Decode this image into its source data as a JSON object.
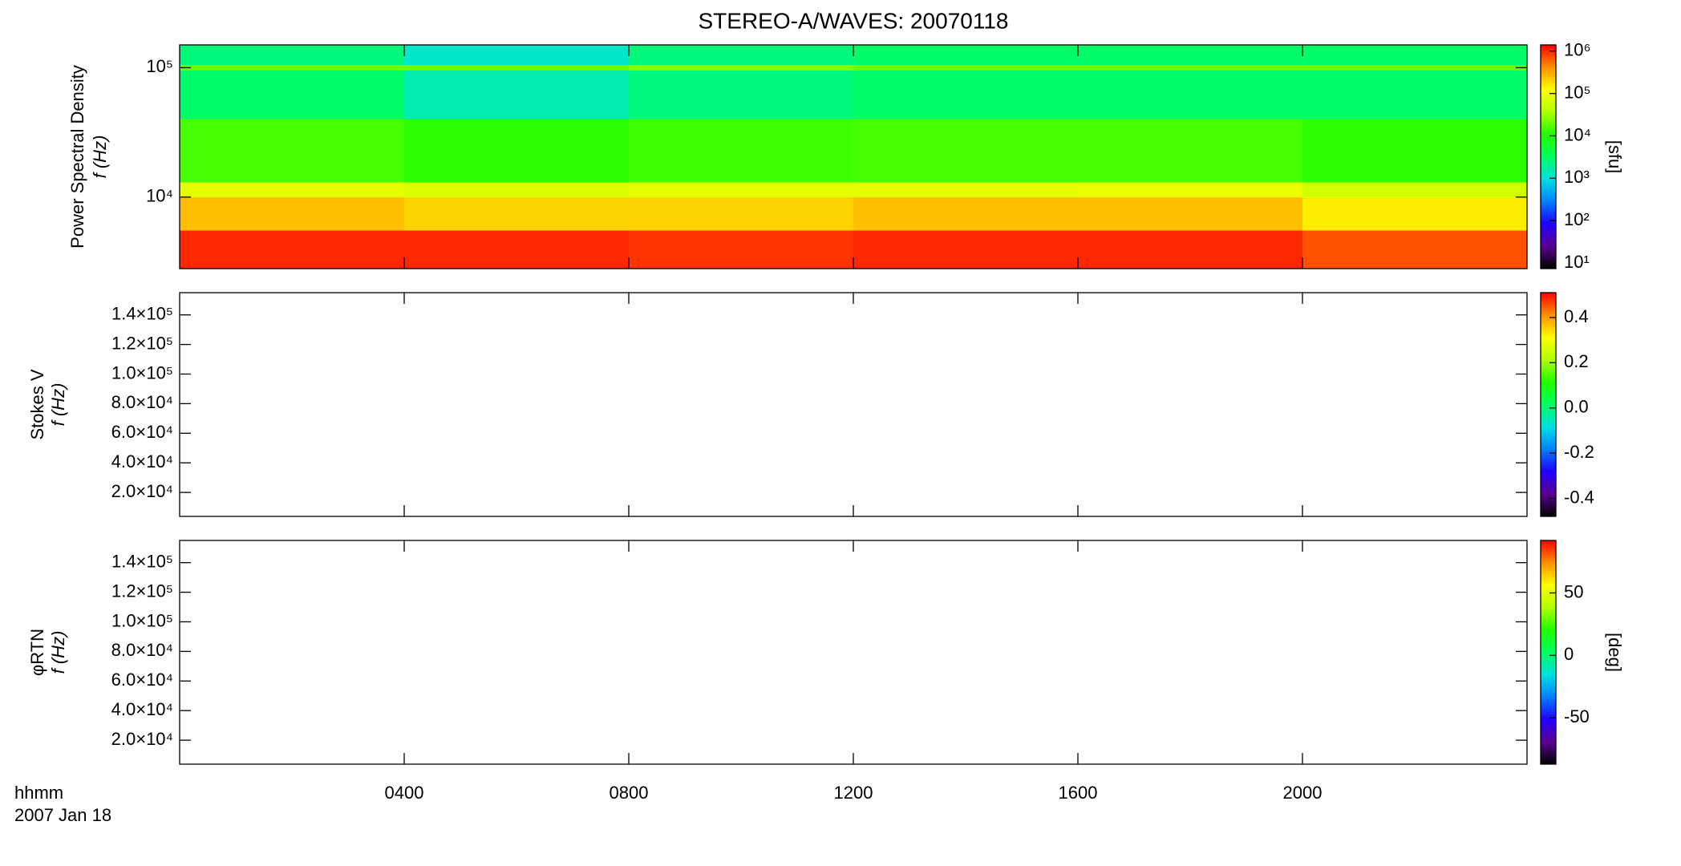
{
  "chart_data": [
    {
      "type": "heatmap",
      "title": "STEREO-A/WAVES: 20070118",
      "ylabel": "Power Spectral Density",
      "ylabel2": "f (Hz)",
      "ylog": true,
      "ylim": [
        2800,
        150000
      ],
      "yticks": [
        {
          "value": 10000,
          "label": "10⁴"
        },
        {
          "value": 100000,
          "label": "10⁵"
        }
      ],
      "xlim": [
        0,
        24
      ],
      "x_bins": [
        0,
        4,
        8,
        12,
        16,
        20,
        24
      ],
      "y_bins": [
        2800,
        5500,
        10000,
        13000,
        40000,
        95000,
        105000,
        150000
      ],
      "z": [
        [
          1000000,
          250000,
          80000,
          15000,
          3000,
          20000,
          2500
        ],
        [
          1000000,
          200000,
          70000,
          12000,
          1500,
          20000,
          1200
        ],
        [
          900000,
          200000,
          80000,
          14000,
          2500,
          25000,
          2500
        ],
        [
          1000000,
          250000,
          80000,
          15000,
          3000,
          20000,
          3000
        ],
        [
          1000000,
          250000,
          90000,
          15000,
          3000,
          20000,
          3000
        ],
        [
          700000,
          150000,
          60000,
          12000,
          3000,
          20000,
          3000
        ]
      ],
      "clog": true,
      "clim": [
        7.4,
        1400000
      ],
      "cticks": [
        {
          "value": 10,
          "label": "10¹"
        },
        {
          "value": 100,
          "label": "10²"
        },
        {
          "value": 1000,
          "label": "10³"
        },
        {
          "value": 10000,
          "label": "10⁴"
        },
        {
          "value": 100000,
          "label": "10⁵"
        },
        {
          "value": 1000000,
          "label": "10⁶"
        }
      ],
      "clabel": "[sfu]",
      "colorscale": [
        "#000000",
        "#5a0090",
        "#2000ff",
        "#0080ff",
        "#00e0e0",
        "#00ff60",
        "#20ff00",
        "#b0ff00",
        "#ffff00",
        "#ff9000",
        "#ff0000"
      ]
    },
    {
      "type": "heatmap",
      "ylabel": "Stokes V",
      "ylabel2": "f (Hz)",
      "ylim": [
        3800,
        155000
      ],
      "yticks": [
        {
          "value": 20000,
          "label": "2.0×10⁴"
        },
        {
          "value": 40000,
          "label": "4.0×10⁴"
        },
        {
          "value": 60000,
          "label": "6.0×10⁴"
        },
        {
          "value": 80000,
          "label": "8.0×10⁴"
        },
        {
          "value": 100000,
          "label": "1.0×10⁵"
        },
        {
          "value": 120000,
          "label": "1.2×10⁵"
        },
        {
          "value": 140000,
          "label": "1.4×10⁵"
        }
      ],
      "xlim": [
        0,
        24
      ],
      "clim": [
        -0.48,
        0.51
      ],
      "cticks": [
        -0.4,
        -0.2,
        {
          "value": 0,
          "label": "0.0"
        },
        0.2,
        0.4
      ]
    },
    {
      "type": "heatmap",
      "ylabel": "φRTN",
      "ylabel2": "f (Hz)",
      "ylim": [
        3800,
        155000
      ],
      "yticks": [
        {
          "value": 20000,
          "label": "2.0×10⁴"
        },
        {
          "value": 40000,
          "label": "4.0×10⁴"
        },
        {
          "value": 60000,
          "label": "6.0×10⁴"
        },
        {
          "value": 80000,
          "label": "8.0×10⁴"
        },
        {
          "value": 100000,
          "label": "1.0×10⁵"
        },
        {
          "value": 120000,
          "label": "1.2×10⁵"
        },
        {
          "value": 140000,
          "label": "1.4×10⁵"
        }
      ],
      "xlim": [
        0,
        24
      ],
      "xticks": [
        {
          "value": 4,
          "label": "0400"
        },
        {
          "value": 8,
          "label": "0800"
        },
        {
          "value": 12,
          "label": "1200"
        },
        {
          "value": 16,
          "label": "1600"
        },
        {
          "value": 20,
          "label": "2000"
        }
      ],
      "x_label": "hhmm",
      "x_sublabel": "2007 Jan 18",
      "clim": [
        -87,
        92
      ],
      "cticks": [
        -50,
        0,
        50
      ],
      "clabel": "[deg]"
    }
  ]
}
